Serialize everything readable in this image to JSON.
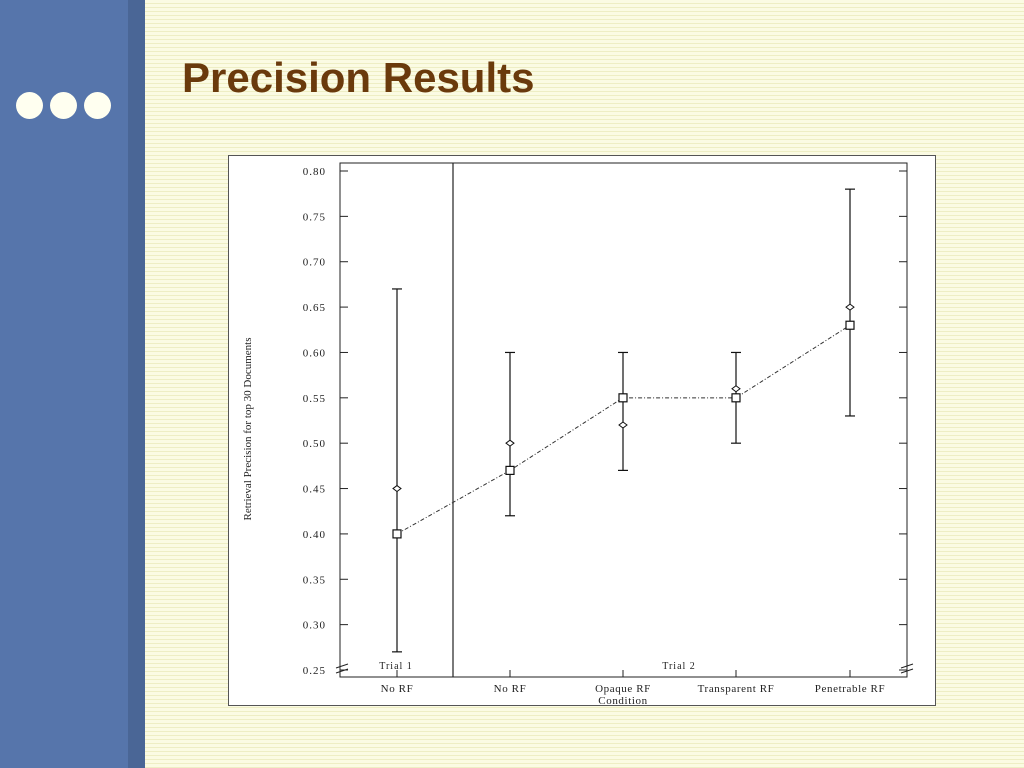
{
  "slide": {
    "title": "Precision Results",
    "colors": {
      "sidebar": "#5675ab",
      "title": "#6a3a0c",
      "dots": "#fffff0",
      "background": "#fbfbe3"
    }
  },
  "chart_data": {
    "type": "scatter",
    "ylabel": "Retrieval Precision for top 30 Documents",
    "xlabel": "Condition",
    "ylim": [
      0.25,
      0.8
    ],
    "yticks": [
      "0.25",
      "0.30",
      "0.35",
      "0.40",
      "0.45",
      "0.50",
      "0.55",
      "0.60",
      "0.65",
      "0.70",
      "0.75",
      "0.80"
    ],
    "categories": [
      "No RF",
      "No RF",
      "Opaque RF",
      "Transparent RF",
      "Penetrable RF"
    ],
    "groups": [
      {
        "label": "Trial 1",
        "categories": [
          0
        ]
      },
      {
        "label": "Trial 2",
        "categories": [
          1,
          2,
          3,
          4
        ]
      }
    ],
    "series": [
      {
        "marker": "square",
        "values": [
          0.4,
          0.47,
          0.55,
          0.55,
          0.63
        ],
        "connected": true
      },
      {
        "marker": "diamond",
        "values": [
          0.45,
          0.5,
          0.52,
          0.56,
          0.65
        ]
      }
    ],
    "error_bars": [
      {
        "low": 0.27,
        "high": 0.67
      },
      {
        "low": 0.42,
        "high": 0.6
      },
      {
        "low": 0.47,
        "high": 0.6
      },
      {
        "low": 0.5,
        "high": 0.6
      },
      {
        "low": 0.53,
        "high": 0.78
      }
    ],
    "grid": false
  }
}
